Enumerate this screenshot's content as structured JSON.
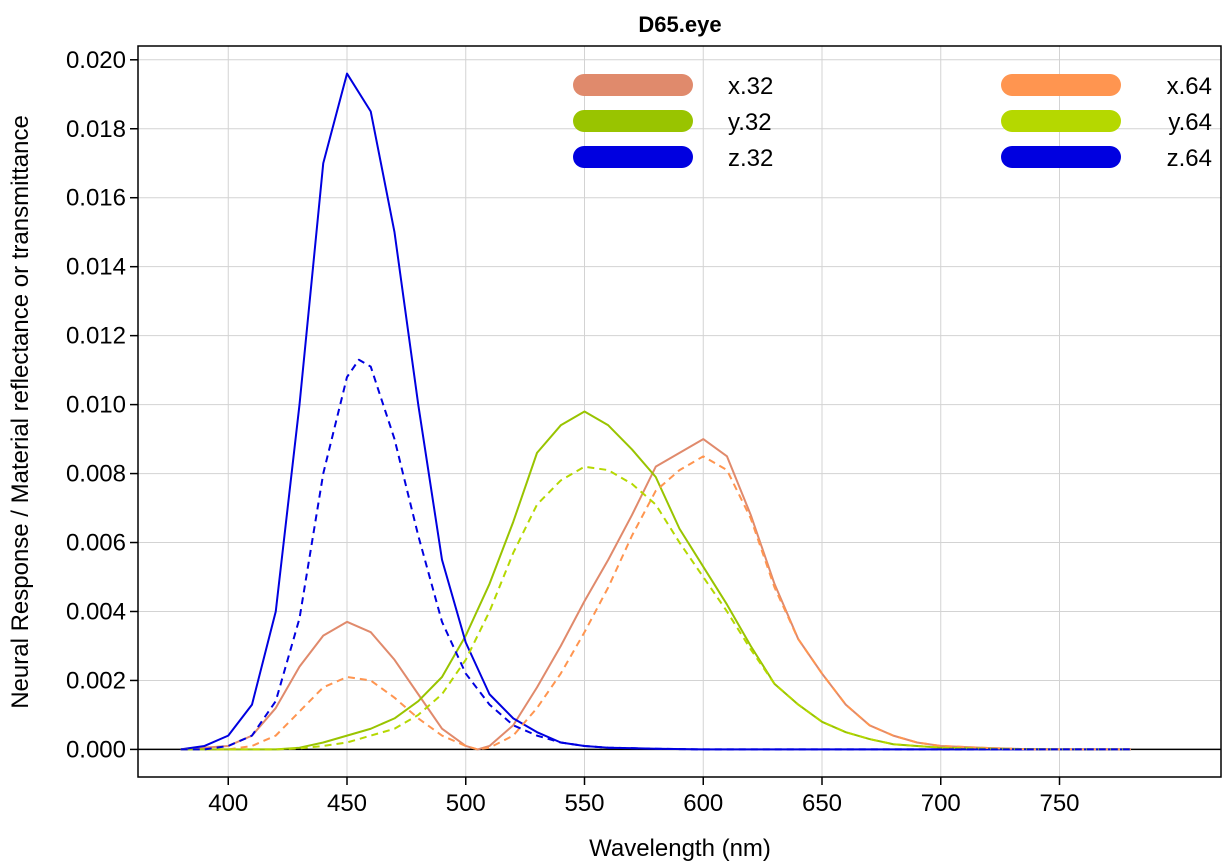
{
  "chart_data": {
    "type": "line",
    "title": "D65.eye",
    "xlabel": "Wavelength (nm)",
    "ylabel": "Neural Response / Material reflectance or transmittance",
    "xlim": [
      362,
      818
    ],
    "ylim": [
      -0.0008,
      0.0204
    ],
    "xticks": [
      "400",
      "450",
      "500",
      "550",
      "600",
      "650",
      "700",
      "750"
    ],
    "yticks": [
      "0.000",
      "0.002",
      "0.004",
      "0.006",
      "0.008",
      "0.010",
      "0.012",
      "0.014",
      "0.016",
      "0.018",
      "0.020"
    ],
    "grid": true,
    "legend_placement": "top",
    "series": [
      {
        "name": "x.32",
        "color": "#E08A6C",
        "dash": "solid",
        "points": [
          [
            380,
            0
          ],
          [
            400,
            0.0001
          ],
          [
            410,
            0.0004
          ],
          [
            420,
            0.0012
          ],
          [
            430,
            0.0024
          ],
          [
            440,
            0.0033
          ],
          [
            450,
            0.0037
          ],
          [
            460,
            0.0034
          ],
          [
            470,
            0.0026
          ],
          [
            480,
            0.0016
          ],
          [
            490,
            0.0006
          ],
          [
            500,
            0.0001
          ],
          [
            505,
            0
          ],
          [
            510,
            0.0001
          ],
          [
            520,
            0.0007
          ],
          [
            530,
            0.0018
          ],
          [
            540,
            0.003
          ],
          [
            550,
            0.0043
          ],
          [
            560,
            0.0055
          ],
          [
            570,
            0.0068
          ],
          [
            580,
            0.0082
          ],
          [
            590,
            0.0086
          ],
          [
            600,
            0.009
          ],
          [
            610,
            0.0085
          ],
          [
            620,
            0.0068
          ],
          [
            630,
            0.0048
          ],
          [
            640,
            0.0032
          ],
          [
            650,
            0.0022
          ],
          [
            660,
            0.0013
          ],
          [
            670,
            0.0007
          ],
          [
            680,
            0.0004
          ],
          [
            690,
            0.0002
          ],
          [
            700,
            0.0001
          ],
          [
            720,
            4e-05
          ],
          [
            740,
            0
          ],
          [
            780,
            0
          ]
        ]
      },
      {
        "name": "y.32",
        "color": "#99C400",
        "dash": "solid",
        "points": [
          [
            380,
            0
          ],
          [
            400,
            0
          ],
          [
            420,
            0
          ],
          [
            430,
            5e-05
          ],
          [
            440,
            0.0002
          ],
          [
            450,
            0.0004
          ],
          [
            460,
            0.0006
          ],
          [
            470,
            0.0009
          ],
          [
            480,
            0.0014
          ],
          [
            490,
            0.0021
          ],
          [
            500,
            0.0033
          ],
          [
            510,
            0.0048
          ],
          [
            520,
            0.0066
          ],
          [
            530,
            0.0086
          ],
          [
            540,
            0.0094
          ],
          [
            550,
            0.0098
          ],
          [
            560,
            0.0094
          ],
          [
            570,
            0.0087
          ],
          [
            580,
            0.0079
          ],
          [
            590,
            0.0064
          ],
          [
            600,
            0.0053
          ],
          [
            610,
            0.0042
          ],
          [
            620,
            0.003
          ],
          [
            630,
            0.0019
          ],
          [
            640,
            0.0013
          ],
          [
            650,
            0.0008
          ],
          [
            660,
            0.0005
          ],
          [
            670,
            0.0003
          ],
          [
            680,
            0.00015
          ],
          [
            690,
            0.0001
          ],
          [
            700,
            5e-05
          ],
          [
            720,
            2e-05
          ],
          [
            750,
            0
          ],
          [
            780,
            0
          ]
        ]
      },
      {
        "name": "z.32",
        "color": "#0000E0",
        "dash": "solid",
        "points": [
          [
            380,
            0
          ],
          [
            390,
            0.0001
          ],
          [
            400,
            0.0004
          ],
          [
            410,
            0.0013
          ],
          [
            420,
            0.004
          ],
          [
            430,
            0.01
          ],
          [
            440,
            0.017
          ],
          [
            450,
            0.0196
          ],
          [
            460,
            0.0185
          ],
          [
            470,
            0.015
          ],
          [
            480,
            0.01
          ],
          [
            490,
            0.0055
          ],
          [
            500,
            0.0031
          ],
          [
            510,
            0.0016
          ],
          [
            520,
            0.0009
          ],
          [
            530,
            0.0005
          ],
          [
            540,
            0.0002
          ],
          [
            550,
            0.0001
          ],
          [
            560,
            5e-05
          ],
          [
            580,
            2e-05
          ],
          [
            600,
            0
          ],
          [
            780,
            0
          ]
        ]
      },
      {
        "name": "x.64",
        "color": "#FF9550",
        "dash": "dashed",
        "points": [
          [
            380,
            0
          ],
          [
            400,
            0
          ],
          [
            410,
            0.0001
          ],
          [
            420,
            0.0004
          ],
          [
            430,
            0.0011
          ],
          [
            440,
            0.0018
          ],
          [
            450,
            0.0021
          ],
          [
            460,
            0.002
          ],
          [
            470,
            0.0015
          ],
          [
            480,
            0.0009
          ],
          [
            490,
            0.0004
          ],
          [
            500,
            0.0001
          ],
          [
            505,
            0
          ],
          [
            510,
            5e-05
          ],
          [
            520,
            0.0004
          ],
          [
            530,
            0.0012
          ],
          [
            540,
            0.0022
          ],
          [
            550,
            0.0034
          ],
          [
            560,
            0.0047
          ],
          [
            570,
            0.0062
          ],
          [
            580,
            0.0075
          ],
          [
            590,
            0.0081
          ],
          [
            600,
            0.0085
          ],
          [
            610,
            0.0081
          ],
          [
            620,
            0.0067
          ],
          [
            630,
            0.0047
          ],
          [
            640,
            0.0032
          ],
          [
            650,
            0.0022
          ],
          [
            660,
            0.0013
          ],
          [
            670,
            0.0007
          ],
          [
            680,
            0.0004
          ],
          [
            690,
            0.0002
          ],
          [
            700,
            0.0001
          ],
          [
            720,
            4e-05
          ],
          [
            740,
            0
          ],
          [
            780,
            0
          ]
        ]
      },
      {
        "name": "y.64",
        "color": "#B5D800",
        "dash": "dashed",
        "points": [
          [
            380,
            0
          ],
          [
            400,
            0
          ],
          [
            420,
            0
          ],
          [
            430,
            3e-05
          ],
          [
            440,
            0.0001
          ],
          [
            450,
            0.0002
          ],
          [
            460,
            0.0004
          ],
          [
            470,
            0.0006
          ],
          [
            480,
            0.001
          ],
          [
            490,
            0.0016
          ],
          [
            500,
            0.0026
          ],
          [
            510,
            0.004
          ],
          [
            520,
            0.0057
          ],
          [
            530,
            0.0071
          ],
          [
            540,
            0.0078
          ],
          [
            550,
            0.0082
          ],
          [
            560,
            0.0081
          ],
          [
            570,
            0.0077
          ],
          [
            580,
            0.0071
          ],
          [
            590,
            0.006
          ],
          [
            600,
            0.005
          ],
          [
            610,
            0.004
          ],
          [
            620,
            0.0029
          ],
          [
            630,
            0.0019
          ],
          [
            640,
            0.0013
          ],
          [
            650,
            0.0008
          ],
          [
            660,
            0.0005
          ],
          [
            670,
            0.0003
          ],
          [
            680,
            0.00015
          ],
          [
            690,
            0.0001
          ],
          [
            700,
            5e-05
          ],
          [
            720,
            2e-05
          ],
          [
            750,
            0
          ],
          [
            780,
            0
          ]
        ]
      },
      {
        "name": "z.64",
        "color": "#0000E0",
        "dash": "dashed",
        "points": [
          [
            380,
            0
          ],
          [
            390,
            0
          ],
          [
            400,
            0.0001
          ],
          [
            410,
            0.0004
          ],
          [
            420,
            0.0014
          ],
          [
            430,
            0.0038
          ],
          [
            440,
            0.008
          ],
          [
            450,
            0.0108
          ],
          [
            455,
            0.0113
          ],
          [
            460,
            0.0111
          ],
          [
            470,
            0.009
          ],
          [
            480,
            0.0062
          ],
          [
            490,
            0.0037
          ],
          [
            500,
            0.0022
          ],
          [
            510,
            0.0013
          ],
          [
            520,
            0.0007
          ],
          [
            530,
            0.0004
          ],
          [
            540,
            0.0002
          ],
          [
            550,
            0.0001
          ],
          [
            560,
            5e-05
          ],
          [
            580,
            2e-05
          ],
          [
            600,
            0
          ],
          [
            780,
            0
          ]
        ]
      }
    ],
    "legend": [
      {
        "label": "x.32",
        "color": "#E08A6C"
      },
      {
        "label": "y.32",
        "color": "#99C400"
      },
      {
        "label": "z.32",
        "color": "#0000E0"
      },
      {
        "label": "x.64",
        "color": "#FF9550"
      },
      {
        "label": "y.64",
        "color": "#B5D800"
      },
      {
        "label": "z.64",
        "color": "#0000E0"
      }
    ]
  }
}
